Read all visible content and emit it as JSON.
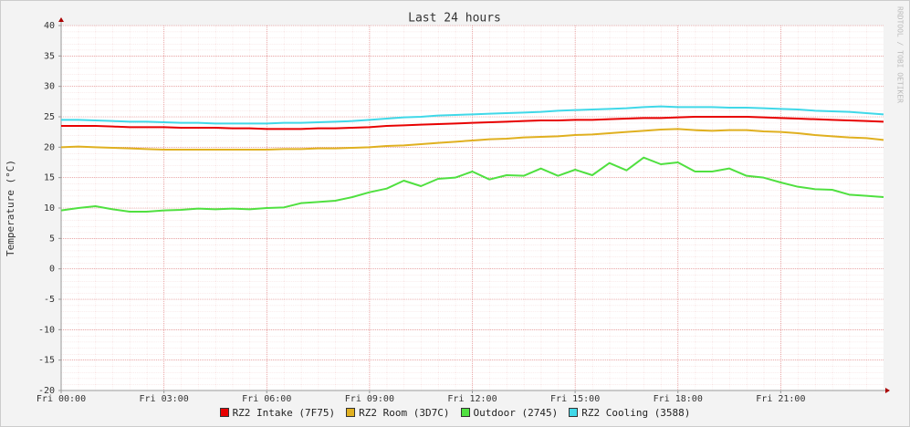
{
  "chart_data": {
    "type": "line",
    "title": "Last 24 hours",
    "y_label": "Temperature (°C)",
    "watermark": "RRDTOOL / TOBI OETIKER",
    "x": [
      0,
      0.5,
      1,
      1.5,
      2,
      2.5,
      3,
      3.5,
      4,
      4.5,
      5,
      5.5,
      6,
      6.5,
      7,
      7.5,
      8,
      8.5,
      9,
      9.5,
      10,
      10.5,
      11,
      11.5,
      12,
      12.5,
      13,
      13.5,
      14,
      14.5,
      15,
      15.5,
      16,
      16.5,
      17,
      17.5,
      18,
      18.5,
      19,
      19.5,
      20,
      20.5,
      21,
      21.5,
      22,
      22.5,
      23,
      23.5,
      24
    ],
    "xlim": [
      0,
      24
    ],
    "xticks": [
      {
        "value": 0,
        "label": "Fri 00:00"
      },
      {
        "value": 3,
        "label": "Fri 03:00"
      },
      {
        "value": 6,
        "label": "Fri 06:00"
      },
      {
        "value": 9,
        "label": "Fri 09:00"
      },
      {
        "value": 12,
        "label": "Fri 12:00"
      },
      {
        "value": 15,
        "label": "Fri 15:00"
      },
      {
        "value": 18,
        "label": "Fri 18:00"
      },
      {
        "value": 21,
        "label": "Fri 21:00"
      }
    ],
    "ylim": [
      -20,
      40
    ],
    "yticks": [
      -20,
      -15,
      -10,
      -5,
      0,
      5,
      10,
      15,
      20,
      25,
      30,
      35,
      40
    ],
    "grid": true,
    "series": [
      {
        "name": "RZ2 Intake (7F75)",
        "color": "#e80000",
        "values": [
          23.5,
          23.5,
          23.5,
          23.4,
          23.3,
          23.3,
          23.3,
          23.2,
          23.2,
          23.2,
          23.1,
          23.1,
          23.0,
          23.0,
          23.0,
          23.1,
          23.1,
          23.2,
          23.3,
          23.5,
          23.6,
          23.7,
          23.8,
          23.9,
          24.0,
          24.1,
          24.2,
          24.3,
          24.4,
          24.4,
          24.5,
          24.5,
          24.6,
          24.7,
          24.8,
          24.8,
          24.9,
          25.0,
          25.0,
          25.0,
          25.0,
          24.9,
          24.8,
          24.7,
          24.6,
          24.5,
          24.4,
          24.3,
          24.2
        ]
      },
      {
        "name": "RZ2 Room (3D7C)",
        "color": "#e0b020",
        "values": [
          20.0,
          20.1,
          20.0,
          19.9,
          19.8,
          19.7,
          19.6,
          19.6,
          19.6,
          19.6,
          19.6,
          19.6,
          19.6,
          19.7,
          19.7,
          19.8,
          19.8,
          19.9,
          20.0,
          20.2,
          20.3,
          20.5,
          20.7,
          20.9,
          21.1,
          21.3,
          21.4,
          21.6,
          21.7,
          21.8,
          22.0,
          22.1,
          22.3,
          22.5,
          22.7,
          22.9,
          23.0,
          22.8,
          22.7,
          22.8,
          22.8,
          22.6,
          22.5,
          22.3,
          22.0,
          21.8,
          21.6,
          21.5,
          21.2
        ]
      },
      {
        "name": "Outdoor (2745)",
        "color": "#50e040",
        "values": [
          9.6,
          10.0,
          10.3,
          9.8,
          9.4,
          9.4,
          9.6,
          9.7,
          9.9,
          9.8,
          9.9,
          9.8,
          10.0,
          10.1,
          10.8,
          11.0,
          11.2,
          11.8,
          12.6,
          13.2,
          14.5,
          13.6,
          14.8,
          15.0,
          16.0,
          14.7,
          15.4,
          15.3,
          16.5,
          15.3,
          16.3,
          15.4,
          17.4,
          16.2,
          18.3,
          17.2,
          17.5,
          16.0,
          16.0,
          16.5,
          15.3,
          15.0,
          14.2,
          13.5,
          13.1,
          13.0,
          12.2,
          12.0,
          11.8
        ]
      },
      {
        "name": "RZ2 Cooling (3588)",
        "color": "#40d8e8",
        "values": [
          24.5,
          24.5,
          24.4,
          24.3,
          24.2,
          24.2,
          24.1,
          24.0,
          24.0,
          23.9,
          23.9,
          23.9,
          23.9,
          24.0,
          24.0,
          24.1,
          24.2,
          24.3,
          24.5,
          24.7,
          24.9,
          25.0,
          25.2,
          25.3,
          25.4,
          25.5,
          25.6,
          25.7,
          25.8,
          26.0,
          26.1,
          26.2,
          26.3,
          26.4,
          26.6,
          26.7,
          26.6,
          26.6,
          26.6,
          26.5,
          26.5,
          26.4,
          26.3,
          26.2,
          26.0,
          25.9,
          25.8,
          25.6,
          25.4
        ]
      }
    ]
  }
}
